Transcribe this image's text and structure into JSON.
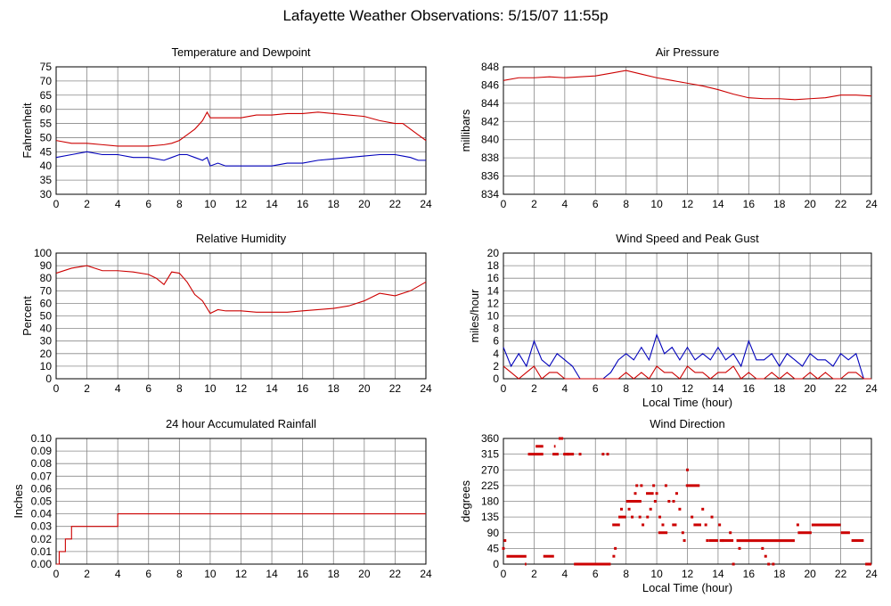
{
  "page_title": "Lafayette Weather Observations: 5/15/07 11:55p",
  "colors": {
    "red": "#cc0000",
    "blue": "#0000bb",
    "grid": "#888888",
    "frame": "#000000"
  },
  "chart_data": [
    {
      "id": "temp",
      "type": "line",
      "title": "Temperature and Dewpoint",
      "xlabel": "",
      "ylabel": "Fahrenheit",
      "xlim": [
        0,
        24
      ],
      "ylim": [
        30,
        75
      ],
      "xticks": [
        0,
        2,
        4,
        6,
        8,
        10,
        12,
        14,
        16,
        18,
        20,
        22,
        24
      ],
      "yticks": [
        30,
        35,
        40,
        45,
        50,
        55,
        60,
        65,
        70,
        75
      ],
      "grid": true,
      "x": [
        0,
        1,
        2,
        3,
        4,
        5,
        6,
        7,
        7.5,
        8,
        8.5,
        9,
        9.5,
        9.8,
        10,
        10.5,
        11,
        12,
        13,
        14,
        15,
        16,
        17,
        18,
        19,
        20,
        21,
        22,
        22.5,
        23,
        23.5,
        24
      ],
      "series": [
        {
          "color": "red",
          "values": [
            49,
            48,
            48,
            47.5,
            47,
            47,
            47,
            47.5,
            48,
            49,
            51,
            53,
            56,
            59,
            57,
            57,
            57,
            57,
            58,
            58,
            58.5,
            58.5,
            59,
            58.5,
            58,
            57.5,
            56,
            55,
            55,
            53,
            51,
            49
          ]
        },
        {
          "color": "blue",
          "values": [
            43,
            44,
            45,
            44,
            44,
            43,
            43,
            42,
            43,
            44,
            44,
            43,
            42,
            43,
            40,
            41,
            40,
            40,
            40,
            40,
            41,
            41,
            42,
            42.5,
            43,
            43.5,
            44,
            44,
            43.5,
            43,
            42,
            42
          ]
        }
      ]
    },
    {
      "id": "pressure",
      "type": "line",
      "title": "Air Pressure",
      "xlabel": "",
      "ylabel": "millibars",
      "xlim": [
        0,
        24
      ],
      "ylim": [
        834,
        848
      ],
      "xticks": [
        0,
        2,
        4,
        6,
        8,
        10,
        12,
        14,
        16,
        18,
        20,
        22,
        24
      ],
      "yticks": [
        834,
        836,
        838,
        840,
        842,
        844,
        846,
        848
      ],
      "grid": true,
      "x": [
        0,
        1,
        2,
        3,
        4,
        5,
        6,
        7,
        8,
        9,
        10,
        11,
        12,
        13,
        14,
        15,
        16,
        17,
        18,
        19,
        20,
        21,
        22,
        23,
        24
      ],
      "series": [
        {
          "color": "red",
          "values": [
            846.5,
            846.8,
            846.8,
            846.9,
            846.8,
            846.9,
            847.0,
            847.3,
            847.6,
            847.2,
            846.8,
            846.5,
            846.2,
            845.9,
            845.5,
            845.0,
            844.6,
            844.5,
            844.5,
            844.4,
            844.5,
            844.6,
            844.9,
            844.9,
            844.8
          ]
        }
      ]
    },
    {
      "id": "humidity",
      "type": "line",
      "title": "Relative Humidity",
      "xlabel": "",
      "ylabel": "Percent",
      "xlim": [
        0,
        24
      ],
      "ylim": [
        0,
        100
      ],
      "xticks": [
        0,
        2,
        4,
        6,
        8,
        10,
        12,
        14,
        16,
        18,
        20,
        22,
        24
      ],
      "yticks": [
        0,
        10,
        20,
        30,
        40,
        50,
        60,
        70,
        80,
        90,
        100
      ],
      "grid": true,
      "x": [
        0,
        1,
        2,
        3,
        4,
        5,
        6,
        6.5,
        7,
        7.5,
        8,
        8.5,
        9,
        9.5,
        10,
        10.5,
        11,
        12,
        13,
        14,
        15,
        16,
        17,
        18,
        19,
        20,
        21,
        22,
        23,
        24
      ],
      "series": [
        {
          "color": "red",
          "values": [
            84,
            88,
            90,
            86,
            86,
            85,
            83,
            80,
            75,
            85,
            84,
            77,
            67,
            62,
            52,
            55,
            54,
            54,
            53,
            53,
            53,
            54,
            55,
            56,
            58,
            62,
            68,
            66,
            70,
            77
          ]
        }
      ]
    },
    {
      "id": "wind",
      "type": "line",
      "title": "Wind Speed and Peak Gust",
      "xlabel": "Local Time (hour)",
      "ylabel": "miles/hour",
      "xlim": [
        0,
        24
      ],
      "ylim": [
        0,
        20
      ],
      "xticks": [
        0,
        2,
        4,
        6,
        8,
        10,
        12,
        14,
        16,
        18,
        20,
        22,
        24
      ],
      "yticks": [
        0,
        2,
        4,
        6,
        8,
        10,
        12,
        14,
        16,
        18,
        20
      ],
      "grid": true,
      "x": [
        0,
        0.5,
        1,
        1.5,
        2,
        2.5,
        3,
        3.5,
        4,
        4.5,
        5,
        5.5,
        6,
        6.5,
        7,
        7.5,
        8,
        8.5,
        9,
        9.5,
        10,
        10.5,
        11,
        11.5,
        12,
        12.5,
        13,
        13.5,
        14,
        14.5,
        15,
        15.5,
        16,
        16.5,
        17,
        17.5,
        18,
        18.5,
        19,
        19.5,
        20,
        20.5,
        21,
        21.5,
        22,
        22.5,
        23,
        23.5,
        24
      ],
      "series": [
        {
          "color": "blue",
          "values": [
            5,
            2,
            4,
            2,
            6,
            3,
            2,
            4,
            3,
            2,
            0,
            0,
            0,
            0,
            1,
            3,
            4,
            3,
            5,
            3,
            7,
            4,
            5,
            3,
            5,
            3,
            4,
            3,
            5,
            3,
            4,
            2,
            6,
            3,
            3,
            4,
            2,
            4,
            3,
            2,
            4,
            3,
            3,
            2,
            4,
            3,
            4,
            0,
            0
          ]
        },
        {
          "color": "red",
          "values": [
            2,
            1,
            0,
            1,
            2,
            0,
            1,
            1,
            0,
            0,
            0,
            0,
            0,
            0,
            0,
            0,
            1,
            0,
            1,
            0,
            2,
            1,
            1,
            0,
            2,
            1,
            1,
            0,
            1,
            1,
            2,
            0,
            1,
            0,
            0,
            1,
            0,
            1,
            0,
            0,
            1,
            0,
            1,
            0,
            0,
            1,
            1,
            0,
            0
          ]
        }
      ]
    },
    {
      "id": "rain",
      "type": "line",
      "title": "24 hour Accumulated Rainfall",
      "xlabel": "",
      "ylabel": "Inches",
      "xlim": [
        0,
        24
      ],
      "ylim": [
        0,
        0.1
      ],
      "xticks": [
        0,
        2,
        4,
        6,
        8,
        10,
        12,
        14,
        16,
        18,
        20,
        22,
        24
      ],
      "yticks": [
        "0.00",
        "0.01",
        "0.02",
        "0.03",
        "0.04",
        "0.05",
        "0.06",
        "0.07",
        "0.08",
        "0.09",
        "0.10"
      ],
      "grid": true,
      "step": true,
      "x": [
        0,
        0.2,
        0.4,
        0.6,
        1.0,
        4.0,
        24
      ],
      "series": [
        {
          "color": "red",
          "values": [
            0.0,
            0.01,
            0.01,
            0.02,
            0.03,
            0.04,
            0.04
          ]
        }
      ]
    },
    {
      "id": "direction",
      "type": "scatter",
      "title": "Wind Direction",
      "xlabel": "Local Time (hour)",
      "ylabel": "degrees",
      "xlim": [
        0,
        24
      ],
      "ylim": [
        0,
        360
      ],
      "xticks": [
        0,
        2,
        4,
        6,
        8,
        10,
        12,
        14,
        16,
        18,
        20,
        22,
        24
      ],
      "yticks": [
        0,
        45,
        90,
        135,
        180,
        225,
        270,
        315,
        360
      ],
      "grid": true,
      "segments": [
        {
          "x0": 0.2,
          "x1": 1.5,
          "y": 22.5
        },
        {
          "x0": 1.4,
          "x1": 1.5,
          "y": 0
        },
        {
          "x0": 1.6,
          "x1": 2.6,
          "y": 315
        },
        {
          "x0": 2.1,
          "x1": 2.6,
          "y": 337.5
        },
        {
          "x0": 2.6,
          "x1": 3.3,
          "y": 22.5
        },
        {
          "x0": 3.2,
          "x1": 3.6,
          "y": 315
        },
        {
          "x0": 3.3,
          "x1": 3.4,
          "y": 337.5
        },
        {
          "x0": 3.6,
          "x1": 3.9,
          "y": 360
        },
        {
          "x0": 3.9,
          "x1": 4.6,
          "y": 315
        },
        {
          "x0": 4.6,
          "x1": 7.0,
          "y": 0
        },
        {
          "x0": 7.1,
          "x1": 7.6,
          "y": 112.5
        },
        {
          "x0": 7.5,
          "x1": 8.0,
          "y": 135
        },
        {
          "x0": 8.0,
          "x1": 9.0,
          "y": 180
        },
        {
          "x0": 9.3,
          "x1": 9.8,
          "y": 202.5
        },
        {
          "x0": 10.1,
          "x1": 10.7,
          "y": 90
        },
        {
          "x0": 11.0,
          "x1": 11.3,
          "y": 112.5
        },
        {
          "x0": 11.9,
          "x1": 12.8,
          "y": 225
        },
        {
          "x0": 12.4,
          "x1": 12.9,
          "y": 112.5
        },
        {
          "x0": 13.4,
          "x1": 14.0,
          "y": 67.5
        },
        {
          "x0": 14.1,
          "x1": 15.0,
          "y": 67.5
        },
        {
          "x0": 15.2,
          "x1": 19.0,
          "y": 67.5
        },
        {
          "x0": 19.2,
          "x1": 20.1,
          "y": 90
        },
        {
          "x0": 20.1,
          "x1": 22.0,
          "y": 112.5
        },
        {
          "x0": 22.0,
          "x1": 22.6,
          "y": 90
        },
        {
          "x0": 22.7,
          "x1": 23.5,
          "y": 67.5
        },
        {
          "x0": 23.6,
          "x1": 24.0,
          "y": 0
        }
      ],
      "points": [
        {
          "x": 0.0,
          "y": 45
        },
        {
          "x": 0.1,
          "y": 67.5
        },
        {
          "x": 4.2,
          "y": 315
        },
        {
          "x": 5.0,
          "y": 315
        },
        {
          "x": 6.5,
          "y": 315
        },
        {
          "x": 6.8,
          "y": 315
        },
        {
          "x": 7.2,
          "y": 22.5
        },
        {
          "x": 7.3,
          "y": 45
        },
        {
          "x": 7.7,
          "y": 157.5
        },
        {
          "x": 8.2,
          "y": 157.5
        },
        {
          "x": 8.4,
          "y": 135
        },
        {
          "x": 8.6,
          "y": 202.5
        },
        {
          "x": 8.7,
          "y": 225
        },
        {
          "x": 8.9,
          "y": 135
        },
        {
          "x": 9.0,
          "y": 225
        },
        {
          "x": 9.1,
          "y": 112.5
        },
        {
          "x": 9.4,
          "y": 135
        },
        {
          "x": 9.6,
          "y": 157.5
        },
        {
          "x": 9.8,
          "y": 225
        },
        {
          "x": 9.9,
          "y": 180
        },
        {
          "x": 10.0,
          "y": 202.5
        },
        {
          "x": 10.2,
          "y": 135
        },
        {
          "x": 10.4,
          "y": 112.5
        },
        {
          "x": 10.6,
          "y": 225
        },
        {
          "x": 10.8,
          "y": 180
        },
        {
          "x": 11.1,
          "y": 180
        },
        {
          "x": 11.3,
          "y": 202.5
        },
        {
          "x": 11.5,
          "y": 157.5
        },
        {
          "x": 11.7,
          "y": 90
        },
        {
          "x": 11.8,
          "y": 67.5
        },
        {
          "x": 12.0,
          "y": 270
        },
        {
          "x": 12.3,
          "y": 135
        },
        {
          "x": 13.0,
          "y": 157.5
        },
        {
          "x": 13.2,
          "y": 112.5
        },
        {
          "x": 13.3,
          "y": 67.5
        },
        {
          "x": 13.6,
          "y": 135
        },
        {
          "x": 14.1,
          "y": 112.5
        },
        {
          "x": 14.3,
          "y": 67.5
        },
        {
          "x": 14.8,
          "y": 90
        },
        {
          "x": 15.0,
          "y": 0
        },
        {
          "x": 15.4,
          "y": 45
        },
        {
          "x": 16.9,
          "y": 45
        },
        {
          "x": 17.1,
          "y": 22.5
        },
        {
          "x": 17.3,
          "y": 0
        },
        {
          "x": 17.6,
          "y": 0
        },
        {
          "x": 19.2,
          "y": 112.5
        }
      ]
    }
  ]
}
